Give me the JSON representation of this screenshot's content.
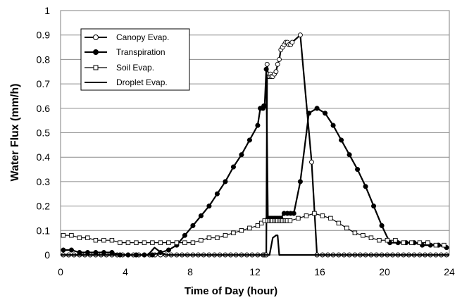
{
  "chart_data": {
    "type": "line",
    "title": "",
    "xlabel": "Time of Day (hour)",
    "ylabel": "Water Flux (mm/h)",
    "xlim": [
      0,
      24
    ],
    "ylim": [
      0,
      1
    ],
    "xticks": [
      0,
      4,
      8,
      12,
      16,
      20,
      24
    ],
    "yticks": [
      0,
      0.1,
      0.2,
      0.3,
      0.4,
      0.5,
      0.6,
      0.7,
      0.8,
      0.9,
      1
    ],
    "ytick_labels": [
      "0",
      "0.1",
      "0.2",
      "0.3",
      "0.4",
      "0.5",
      "0.6",
      "0.7",
      "0.8",
      "0.9",
      "1"
    ],
    "grid": "horizontal",
    "legend_position": "top-left",
    "series": [
      {
        "name": "Canopy Evap.",
        "marker": "open-circle",
        "color": "#000000",
        "x": [
          0.17,
          0.5,
          0.83,
          1.17,
          1.5,
          1.83,
          2.17,
          2.5,
          2.83,
          3.17,
          3.5,
          3.83,
          4.17,
          4.5,
          4.83,
          5.17,
          5.5,
          5.83,
          6.17,
          6.5,
          6.83,
          7.17,
          7.5,
          7.83,
          8.17,
          8.5,
          8.83,
          9.17,
          9.5,
          9.83,
          10.17,
          10.5,
          10.83,
          11.17,
          11.5,
          11.83,
          12.17,
          12.5,
          12.6,
          12.7,
          12.75,
          12.8,
          12.85,
          12.9,
          12.95,
          13.0,
          13.1,
          13.2,
          13.3,
          13.4,
          13.5,
          13.6,
          13.7,
          13.8,
          13.9,
          14.0,
          14.1,
          14.2,
          14.3,
          14.8,
          15.5,
          15.83,
          16.17,
          16.5,
          16.83,
          17.17,
          17.5,
          17.83,
          18.17,
          18.5,
          18.83,
          19.17,
          19.5,
          19.83,
          20.17,
          20.5,
          20.83,
          21.17,
          21.5,
          21.83,
          22.17,
          22.5,
          22.83,
          23.17,
          23.5,
          23.83
        ],
        "y": [
          0,
          0,
          0,
          0,
          0,
          0,
          0,
          0,
          0,
          0,
          0,
          0,
          0,
          0,
          0,
          0,
          0,
          0,
          0,
          0,
          0,
          0,
          0,
          0,
          0,
          0,
          0,
          0,
          0,
          0,
          0,
          0,
          0,
          0,
          0,
          0,
          0,
          0,
          0,
          0,
          0.78,
          0.74,
          0.73,
          0.73,
          0.74,
          0.73,
          0.73,
          0.74,
          0.75,
          0.78,
          0.8,
          0.84,
          0.85,
          0.86,
          0.87,
          0.87,
          0.86,
          0.86,
          0.87,
          0.9,
          0.38,
          0,
          0,
          0,
          0,
          0,
          0,
          0,
          0,
          0,
          0,
          0,
          0,
          0,
          0,
          0,
          0,
          0,
          0,
          0,
          0,
          0,
          0,
          0,
          0,
          0
        ]
      },
      {
        "name": "Transpiration",
        "marker": "filled-circle",
        "color": "#000000",
        "x": [
          0.17,
          0.67,
          1.17,
          1.67,
          2.17,
          2.67,
          3.17,
          3.67,
          4.17,
          4.67,
          5.17,
          5.67,
          6.17,
          6.67,
          7.17,
          7.67,
          8.17,
          8.67,
          9.17,
          9.67,
          10.17,
          10.67,
          11.17,
          11.67,
          12.17,
          12.33,
          12.5,
          12.55,
          12.6,
          12.7,
          12.8,
          12.9,
          13.0,
          13.1,
          13.2,
          13.3,
          13.4,
          13.5,
          13.6,
          13.8,
          14.0,
          14.2,
          14.4,
          14.8,
          15.33,
          15.83,
          16.33,
          16.83,
          17.33,
          17.83,
          18.33,
          18.83,
          19.33,
          19.83,
          20.33,
          20.83,
          21.33,
          21.83,
          22.33,
          22.83,
          23.33,
          23.83
        ],
        "y": [
          0.02,
          0.02,
          0.01,
          0.01,
          0.01,
          0.01,
          0.01,
          0,
          0,
          0,
          0,
          0,
          0.01,
          0.02,
          0.04,
          0.08,
          0.12,
          0.16,
          0.2,
          0.25,
          0.3,
          0.36,
          0.41,
          0.47,
          0.53,
          0.6,
          0.6,
          0.61,
          0.61,
          0.76,
          0.15,
          0.15,
          0.15,
          0.15,
          0.15,
          0.15,
          0.15,
          0.15,
          0.15,
          0.17,
          0.17,
          0.17,
          0.17,
          0.3,
          0.58,
          0.6,
          0.58,
          0.53,
          0.47,
          0.41,
          0.35,
          0.28,
          0.2,
          0.12,
          0.05,
          0.05,
          0.05,
          0.05,
          0.04,
          0.04,
          0.04,
          0.03
        ]
      },
      {
        "name": "Soil Evap.",
        "marker": "open-square",
        "color": "#000000",
        "x": [
          0.17,
          0.67,
          1.17,
          1.67,
          2.17,
          2.67,
          3.17,
          3.67,
          4.17,
          4.67,
          5.17,
          5.67,
          6.17,
          6.67,
          7.17,
          7.67,
          8.17,
          8.67,
          9.17,
          9.67,
          10.17,
          10.67,
          11.17,
          11.67,
          12.17,
          12.4,
          12.6,
          12.8,
          12.9,
          13.0,
          13.1,
          13.2,
          13.3,
          13.4,
          13.5,
          13.6,
          13.7,
          13.8,
          13.9,
          14.0,
          14.17,
          14.67,
          15.17,
          15.67,
          16.17,
          16.67,
          17.17,
          17.67,
          18.17,
          18.67,
          19.17,
          19.67,
          20.17,
          20.67,
          21.17,
          21.67,
          22.17,
          22.67,
          23.17,
          23.67
        ],
        "y": [
          0.08,
          0.08,
          0.07,
          0.07,
          0.06,
          0.06,
          0.06,
          0.05,
          0.05,
          0.05,
          0.05,
          0.05,
          0.05,
          0.05,
          0.05,
          0.05,
          0.05,
          0.06,
          0.07,
          0.07,
          0.08,
          0.09,
          0.1,
          0.11,
          0.12,
          0.13,
          0.14,
          0.14,
          0.14,
          0.14,
          0.14,
          0.14,
          0.14,
          0.14,
          0.14,
          0.14,
          0.14,
          0.14,
          0.14,
          0.14,
          0.14,
          0.15,
          0.16,
          0.17,
          0.16,
          0.15,
          0.13,
          0.11,
          0.09,
          0.08,
          0.07,
          0.06,
          0.06,
          0.06,
          0.05,
          0.05,
          0.05,
          0.05,
          0.04,
          0.04
        ]
      },
      {
        "name": "Droplet Evap.",
        "marker": "none",
        "color": "#000000",
        "x": [
          0,
          5.4,
          5.8,
          6.2,
          6.5,
          12.9,
          13.1,
          13.3,
          13.4,
          13.5,
          24
        ],
        "y": [
          0,
          0,
          0.03,
          0.01,
          0,
          0,
          0.07,
          0.08,
          0.08,
          0,
          0
        ]
      }
    ]
  }
}
